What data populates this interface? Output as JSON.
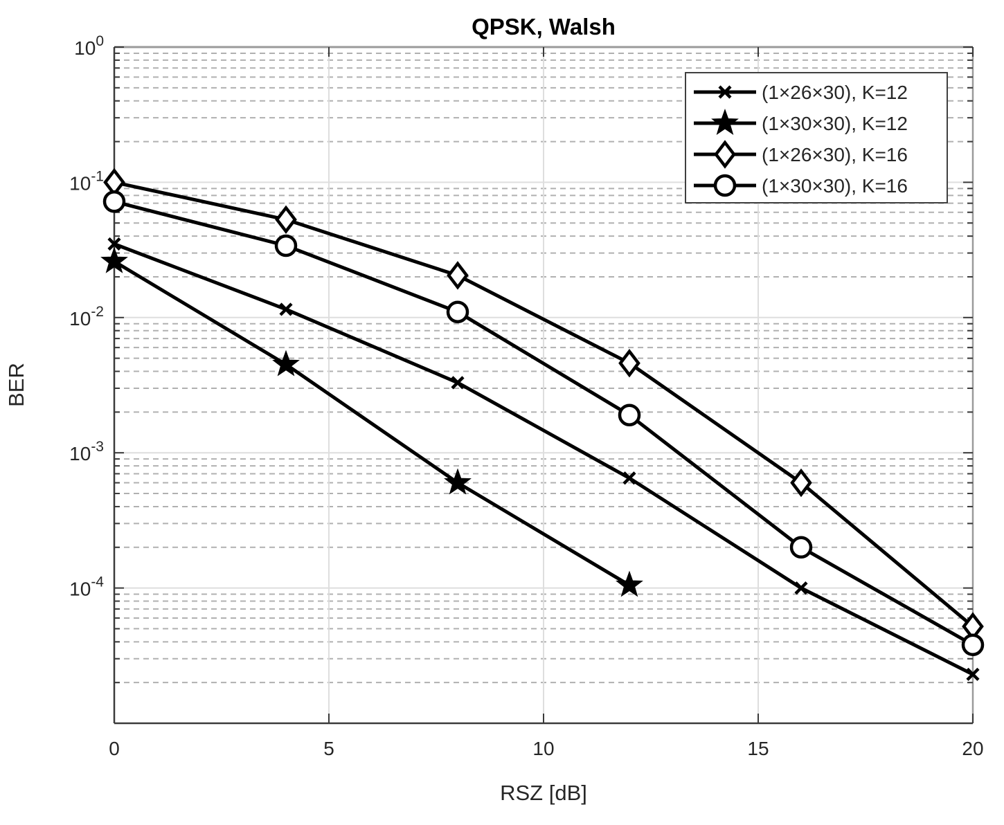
{
  "chart_data": {
    "type": "line",
    "title": "QPSK, Walsh",
    "xlabel": "RSZ [dB]",
    "ylabel": "BER",
    "xlim": [
      0,
      20
    ],
    "ylim": [
      1e-05,
      1
    ],
    "yscale": "log",
    "x_ticks": [
      0,
      5,
      10,
      15,
      20
    ],
    "x_tick_labels": [
      "0",
      "5",
      "10",
      "15",
      "20"
    ],
    "y_tick_exponents": [
      0,
      -1,
      -2,
      -3,
      -4
    ],
    "x_gridlines": [
      5,
      10,
      15
    ],
    "grid": true,
    "minor_grid": true,
    "legend_position": "upper-right",
    "line_color": "#000000",
    "series": [
      {
        "name": "(1×26×30), K=12",
        "marker": "cross",
        "x": [
          0,
          4,
          8,
          12,
          16,
          20
        ],
        "y": [
          0.035,
          0.0115,
          0.0033,
          0.00065,
          0.0001,
          2.3e-05
        ]
      },
      {
        "name": "(1×30×30), K=12",
        "marker": "star5",
        "x": [
          0,
          4,
          8,
          12
        ],
        "y": [
          0.026,
          0.0045,
          0.0006,
          0.000105
        ]
      },
      {
        "name": "(1×26×30), K=16",
        "marker": "diamond",
        "x": [
          0,
          4,
          8,
          12,
          16,
          20
        ],
        "y": [
          0.1,
          0.053,
          0.0205,
          0.0046,
          0.0006,
          5.2e-05
        ]
      },
      {
        "name": "(1×30×30), K=16",
        "marker": "circle",
        "x": [
          0,
          4,
          8,
          12,
          16,
          20
        ],
        "y": [
          0.072,
          0.034,
          0.011,
          0.0019,
          0.0002,
          3.8e-05
        ]
      }
    ],
    "colors": {
      "series_stroke": "#000000",
      "frame_dark": "#3a3a3a",
      "frame_light": "#9a9a9a",
      "major_grid": "#dedede",
      "minor_grid": "#b0b0b0",
      "tick_text": "#262626",
      "legend_border": "#3f3f3f",
      "background": "#ffffff"
    }
  }
}
